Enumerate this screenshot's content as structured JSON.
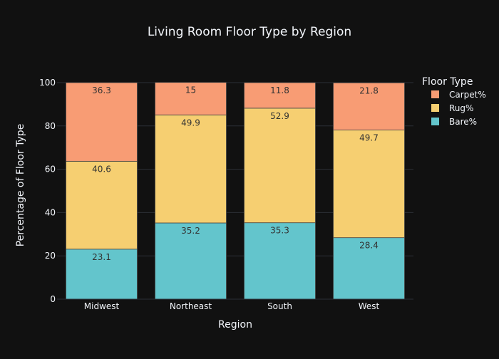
{
  "chart_data": {
    "type": "bar",
    "stacked": true,
    "title": "Living Room Floor Type by Region",
    "xlabel": "Region",
    "ylabel": "Percentage of Floor Type",
    "categories": [
      "Midwest",
      "Northeast",
      "South",
      "West"
    ],
    "ylim": [
      0,
      100
    ],
    "yticks": [
      0,
      20,
      40,
      60,
      80,
      100
    ],
    "grid": true,
    "legend": {
      "title": "Floor Type",
      "placement": "top-right"
    },
    "series": [
      {
        "name": "Bare%",
        "color": "#63c5cc",
        "values": [
          23.1,
          35.2,
          35.3,
          28.4
        ]
      },
      {
        "name": "Rug%",
        "color": "#f6cf71",
        "values": [
          40.6,
          49.9,
          52.9,
          49.7
        ]
      },
      {
        "name": "Carpet%",
        "color": "#f89c74",
        "values": [
          36.3,
          15,
          11.8,
          21.8
        ]
      }
    ]
  },
  "colors": {
    "background": "#111111",
    "grid": "#2b2f36",
    "text": "#f2f5fa",
    "data_label": "#333333",
    "bar_outline": "#444444"
  }
}
